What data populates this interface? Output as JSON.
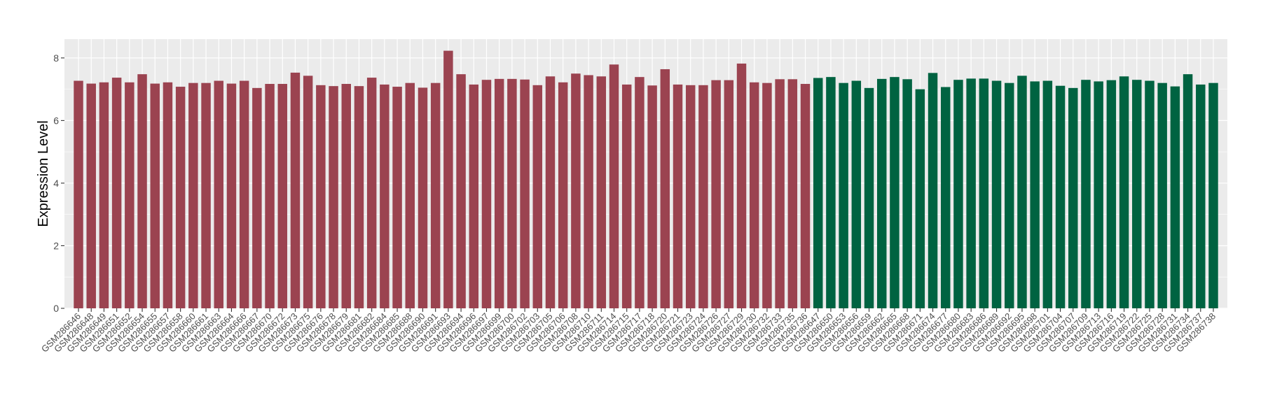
{
  "chart_data": {
    "type": "bar",
    "title": "",
    "xlabel": "",
    "ylabel": "Expression Level",
    "ylim": [
      0,
      8.6
    ],
    "yticks": [
      0,
      2,
      4,
      6,
      8
    ],
    "grid": true,
    "legend": "none",
    "colors": {
      "group1": "#9b4350",
      "group2": "#006341",
      "panel": "#ebebeb",
      "gridline": "#ffffff"
    },
    "categories": [
      "GSM286646",
      "GSM286648",
      "GSM286649",
      "GSM286651",
      "GSM286652",
      "GSM286654",
      "GSM286655",
      "GSM286657",
      "GSM286658",
      "GSM286660",
      "GSM286661",
      "GSM286663",
      "GSM286664",
      "GSM286666",
      "GSM286667",
      "GSM286670",
      "GSM286672",
      "GSM286673",
      "GSM286675",
      "GSM286676",
      "GSM286678",
      "GSM286679",
      "GSM286681",
      "GSM286682",
      "GSM286684",
      "GSM286685",
      "GSM286688",
      "GSM286690",
      "GSM286691",
      "GSM286693",
      "GSM286694",
      "GSM286696",
      "GSM286697",
      "GSM286699",
      "GSM286700",
      "GSM286702",
      "GSM286703",
      "GSM286705",
      "GSM286706",
      "GSM286708",
      "GSM286710",
      "GSM286711",
      "GSM286714",
      "GSM286715",
      "GSM286717",
      "GSM286718",
      "GSM286720",
      "GSM286721",
      "GSM286723",
      "GSM286724",
      "GSM286726",
      "GSM286727",
      "GSM286729",
      "GSM286730",
      "GSM286732",
      "GSM286733",
      "GSM286735",
      "GSM286736",
      "GSM286647",
      "GSM286650",
      "GSM286653",
      "GSM286656",
      "GSM286659",
      "GSM286662",
      "GSM286665",
      "GSM286668",
      "GSM286671",
      "GSM286674",
      "GSM286677",
      "GSM286680",
      "GSM286683",
      "GSM286686",
      "GSM286689",
      "GSM286692",
      "GSM286695",
      "GSM286698",
      "GSM286701",
      "GSM286704",
      "GSM286707",
      "GSM286709",
      "GSM286713",
      "GSM286716",
      "GSM286719",
      "GSM286722",
      "GSM286725",
      "GSM286728",
      "GSM286731",
      "GSM286734",
      "GSM286737",
      "GSM286738"
    ],
    "values": [
      7.27,
      7.18,
      7.22,
      7.37,
      7.22,
      7.48,
      7.18,
      7.22,
      7.08,
      7.2,
      7.2,
      7.27,
      7.18,
      7.27,
      7.04,
      7.17,
      7.17,
      7.53,
      7.43,
      7.13,
      7.1,
      7.17,
      7.1,
      7.37,
      7.15,
      7.08,
      7.2,
      7.05,
      7.2,
      8.23,
      7.48,
      7.15,
      7.3,
      7.33,
      7.33,
      7.31,
      7.13,
      7.41,
      7.22,
      7.5,
      7.45,
      7.41,
      7.79,
      7.15,
      7.39,
      7.12,
      7.64,
      7.15,
      7.13,
      7.13,
      7.29,
      7.29,
      7.82,
      7.22,
      7.2,
      7.32,
      7.32,
      7.17,
      7.36,
      7.39,
      7.2,
      7.27,
      7.04,
      7.33,
      7.39,
      7.32,
      7.0,
      7.52,
      7.07,
      7.3,
      7.34,
      7.34,
      7.27,
      7.2,
      7.43,
      7.25,
      7.27,
      7.11,
      7.04,
      7.3,
      7.25,
      7.29,
      7.41,
      7.3,
      7.27,
      7.2,
      7.09,
      7.48,
      7.15,
      7.2
    ],
    "groups": [
      1,
      1,
      1,
      1,
      1,
      1,
      1,
      1,
      1,
      1,
      1,
      1,
      1,
      1,
      1,
      1,
      1,
      1,
      1,
      1,
      1,
      1,
      1,
      1,
      1,
      1,
      1,
      1,
      1,
      1,
      1,
      1,
      1,
      1,
      1,
      1,
      1,
      1,
      1,
      1,
      1,
      1,
      1,
      1,
      1,
      1,
      1,
      1,
      1,
      1,
      1,
      1,
      1,
      1,
      1,
      1,
      1,
      1,
      2,
      2,
      2,
      2,
      2,
      2,
      2,
      2,
      2,
      2,
      2,
      2,
      2,
      2,
      2,
      2,
      2,
      2,
      2,
      2,
      2,
      2,
      2,
      2,
      2,
      2,
      2,
      2,
      2,
      2,
      2,
      2
    ]
  }
}
